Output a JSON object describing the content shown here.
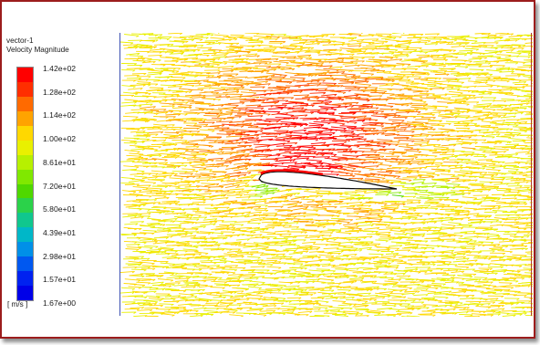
{
  "legend": {
    "title_line1": "vector-1",
    "title_line2": "Velocity Magnitude",
    "ticks": [
      "1.42e+02",
      "1.28e+02",
      "1.14e+02",
      "1.00e+02",
      "8.61e+01",
      "7.20e+01",
      "5.80e+01",
      "4.39e+01",
      "2.98e+01",
      "1.57e+01",
      "1.67e+00"
    ],
    "unit": "[ m/s ]",
    "colors": [
      "#ff0000",
      "#ff2e00",
      "#ff6a00",
      "#ffa300",
      "#ffd800",
      "#e9f000",
      "#b7f000",
      "#80e800",
      "#4fd800",
      "#2bd24a",
      "#10c78e",
      "#00b7c8",
      "#0090e8",
      "#0058f0",
      "#0022f0",
      "#0000e8"
    ]
  },
  "colors": {
    "frame_border": "#9c1d1d",
    "viewport_left_edge": "#3a4fb0",
    "viewport_right_edge": "#b23a2a",
    "airfoil_edge": "#0a0a0a"
  },
  "icons": [
    "velocity-vector-field",
    "airfoil-outline"
  ]
}
